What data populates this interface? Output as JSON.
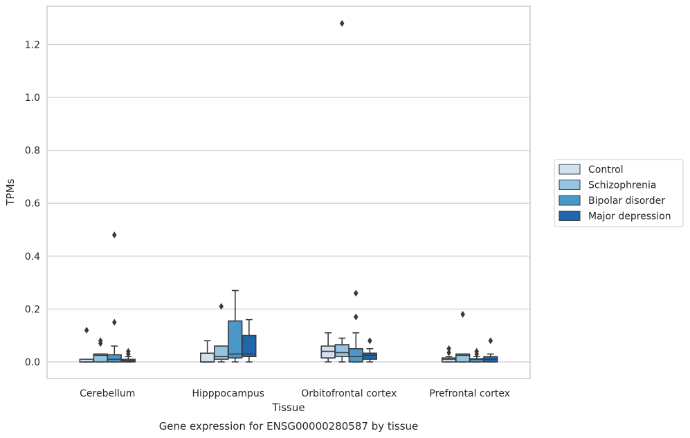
{
  "chart_data": {
    "type": "box",
    "title": "",
    "caption": "Gene expression for ENSG00000280587 by tissue",
    "xlabel": "Tissue",
    "ylabel": "TPMs",
    "ylim": [
      -0.063,
      1.345
    ],
    "yticks": [
      0.0,
      0.2,
      0.4,
      0.6,
      0.8,
      1.0,
      1.2
    ],
    "ytick_labels": [
      "0.0",
      "0.2",
      "0.4",
      "0.6",
      "0.8",
      "1.0",
      "1.2"
    ],
    "grid": "horizontal",
    "legend_placement": "right",
    "categories": [
      "Cerebellum",
      "Hipppocampus",
      "Orbitofrontal cortex",
      "Prefrontal cortex"
    ],
    "series": [
      {
        "name": "Control",
        "color": "#d0e1f2",
        "boxes": [
          {
            "whislo": 0.0,
            "q1": 0.0,
            "med": 0.0,
            "q3": 0.01,
            "whishi": 0.01,
            "fliers": [
              0.12
            ]
          },
          {
            "whislo": 0.0,
            "q1": 0.0,
            "med": 0.0,
            "q3": 0.033,
            "whishi": 0.08,
            "fliers": []
          },
          {
            "whislo": 0.0,
            "q1": 0.015,
            "med": 0.04,
            "q3": 0.06,
            "whishi": 0.11,
            "fliers": []
          },
          {
            "whislo": 0.0,
            "q1": 0.0,
            "med": 0.01,
            "q3": 0.015,
            "whishi": 0.02,
            "fliers": [
              0.035,
              0.05
            ]
          }
        ]
      },
      {
        "name": "Schizophrenia",
        "color": "#94c4df",
        "boxes": [
          {
            "whislo": 0.0,
            "q1": 0.0,
            "med": 0.025,
            "q3": 0.03,
            "whishi": 0.03,
            "fliers": [
              0.07,
              0.08
            ]
          },
          {
            "whislo": 0.0,
            "q1": 0.01,
            "med": 0.02,
            "q3": 0.06,
            "whishi": 0.06,
            "fliers": [
              0.21
            ]
          },
          {
            "whislo": 0.0,
            "q1": 0.02,
            "med": 0.035,
            "q3": 0.065,
            "whishi": 0.09,
            "fliers": [
              1.28
            ]
          },
          {
            "whislo": 0.0,
            "q1": 0.0,
            "med": 0.025,
            "q3": 0.03,
            "whishi": 0.03,
            "fliers": [
              0.18
            ]
          }
        ]
      },
      {
        "name": "Bipolar disorder",
        "color": "#4a98c9",
        "boxes": [
          {
            "whislo": 0.0,
            "q1": 0.0,
            "med": 0.01,
            "q3": 0.027,
            "whishi": 0.06,
            "fliers": [
              0.15,
              0.48
            ]
          },
          {
            "whislo": 0.0,
            "q1": 0.015,
            "med": 0.03,
            "q3": 0.155,
            "whishi": 0.27,
            "fliers": []
          },
          {
            "whislo": 0.0,
            "q1": 0.0,
            "med": 0.02,
            "q3": 0.05,
            "whishi": 0.11,
            "fliers": [
              0.17,
              0.26
            ]
          },
          {
            "whislo": 0.0,
            "q1": 0.0,
            "med": 0.01,
            "q3": 0.012,
            "whishi": 0.02,
            "fliers": [
              0.03,
              0.04
            ]
          }
        ]
      },
      {
        "name": "Major depression",
        "color": "#2066ac",
        "boxes": [
          {
            "whislo": 0.0,
            "q1": 0.0,
            "med": 0.005,
            "q3": 0.01,
            "whishi": 0.02,
            "fliers": [
              0.03,
              0.04
            ]
          },
          {
            "whislo": 0.0,
            "q1": 0.02,
            "med": 0.03,
            "q3": 0.1,
            "whishi": 0.16,
            "fliers": []
          },
          {
            "whislo": 0.0,
            "q1": 0.01,
            "med": 0.025,
            "q3": 0.033,
            "whishi": 0.05,
            "fliers": [
              0.08
            ]
          },
          {
            "whislo": 0.0,
            "q1": 0.0,
            "med": 0.01,
            "q3": 0.02,
            "whishi": 0.03,
            "fliers": [
              0.08
            ]
          }
        ]
      }
    ]
  }
}
